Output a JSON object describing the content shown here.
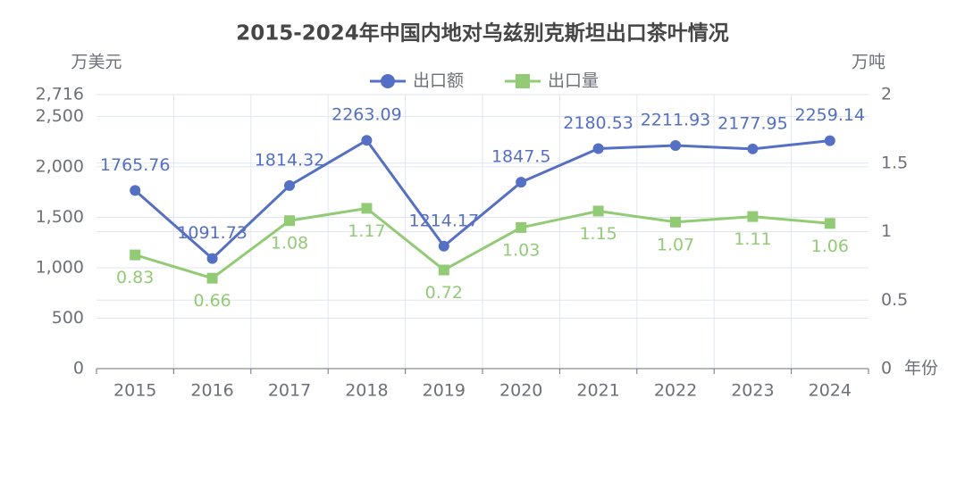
{
  "chart_data": {
    "type": "line",
    "title": "2015-2024年中国内地对乌兹别克斯坦出口茶叶情况",
    "y_label": "万美元",
    "y2_label": "万吨",
    "x_label": "年份",
    "categories": [
      "2015",
      "2016",
      "2017",
      "2018",
      "2019",
      "2020",
      "2021",
      "2022",
      "2023",
      "2024"
    ],
    "series": [
      {
        "name": "出口额",
        "color": "#5470c6",
        "marker": "circle",
        "values": [
          1765.76,
          1091.73,
          1814.32,
          2263.09,
          1214.17,
          1847.5,
          2180.53,
          2211.93,
          2177.95,
          2259.14
        ]
      },
      {
        "name": "出口量",
        "color": "#91cc75",
        "marker": "square",
        "axis": "y2",
        "values": [
          0.83,
          0.66,
          1.08,
          1.17,
          0.72,
          1.03,
          1.15,
          1.07,
          1.11,
          1.06
        ]
      }
    ],
    "ylim": [
      0,
      2716
    ],
    "yticks": [
      0,
      500,
      {
        "value": 1000,
        "label": "1,000"
      },
      {
        "value": 1500,
        "label": "1,500"
      },
      {
        "value": 2000,
        "label": "2,000"
      },
      {
        "value": 2500,
        "label": "2,500"
      },
      {
        "value": 2716,
        "label": "2,716"
      }
    ],
    "y2lim": [
      0,
      2
    ],
    "y2ticks": [
      0,
      0.5,
      1,
      1.5,
      2
    ],
    "grid": true
  }
}
